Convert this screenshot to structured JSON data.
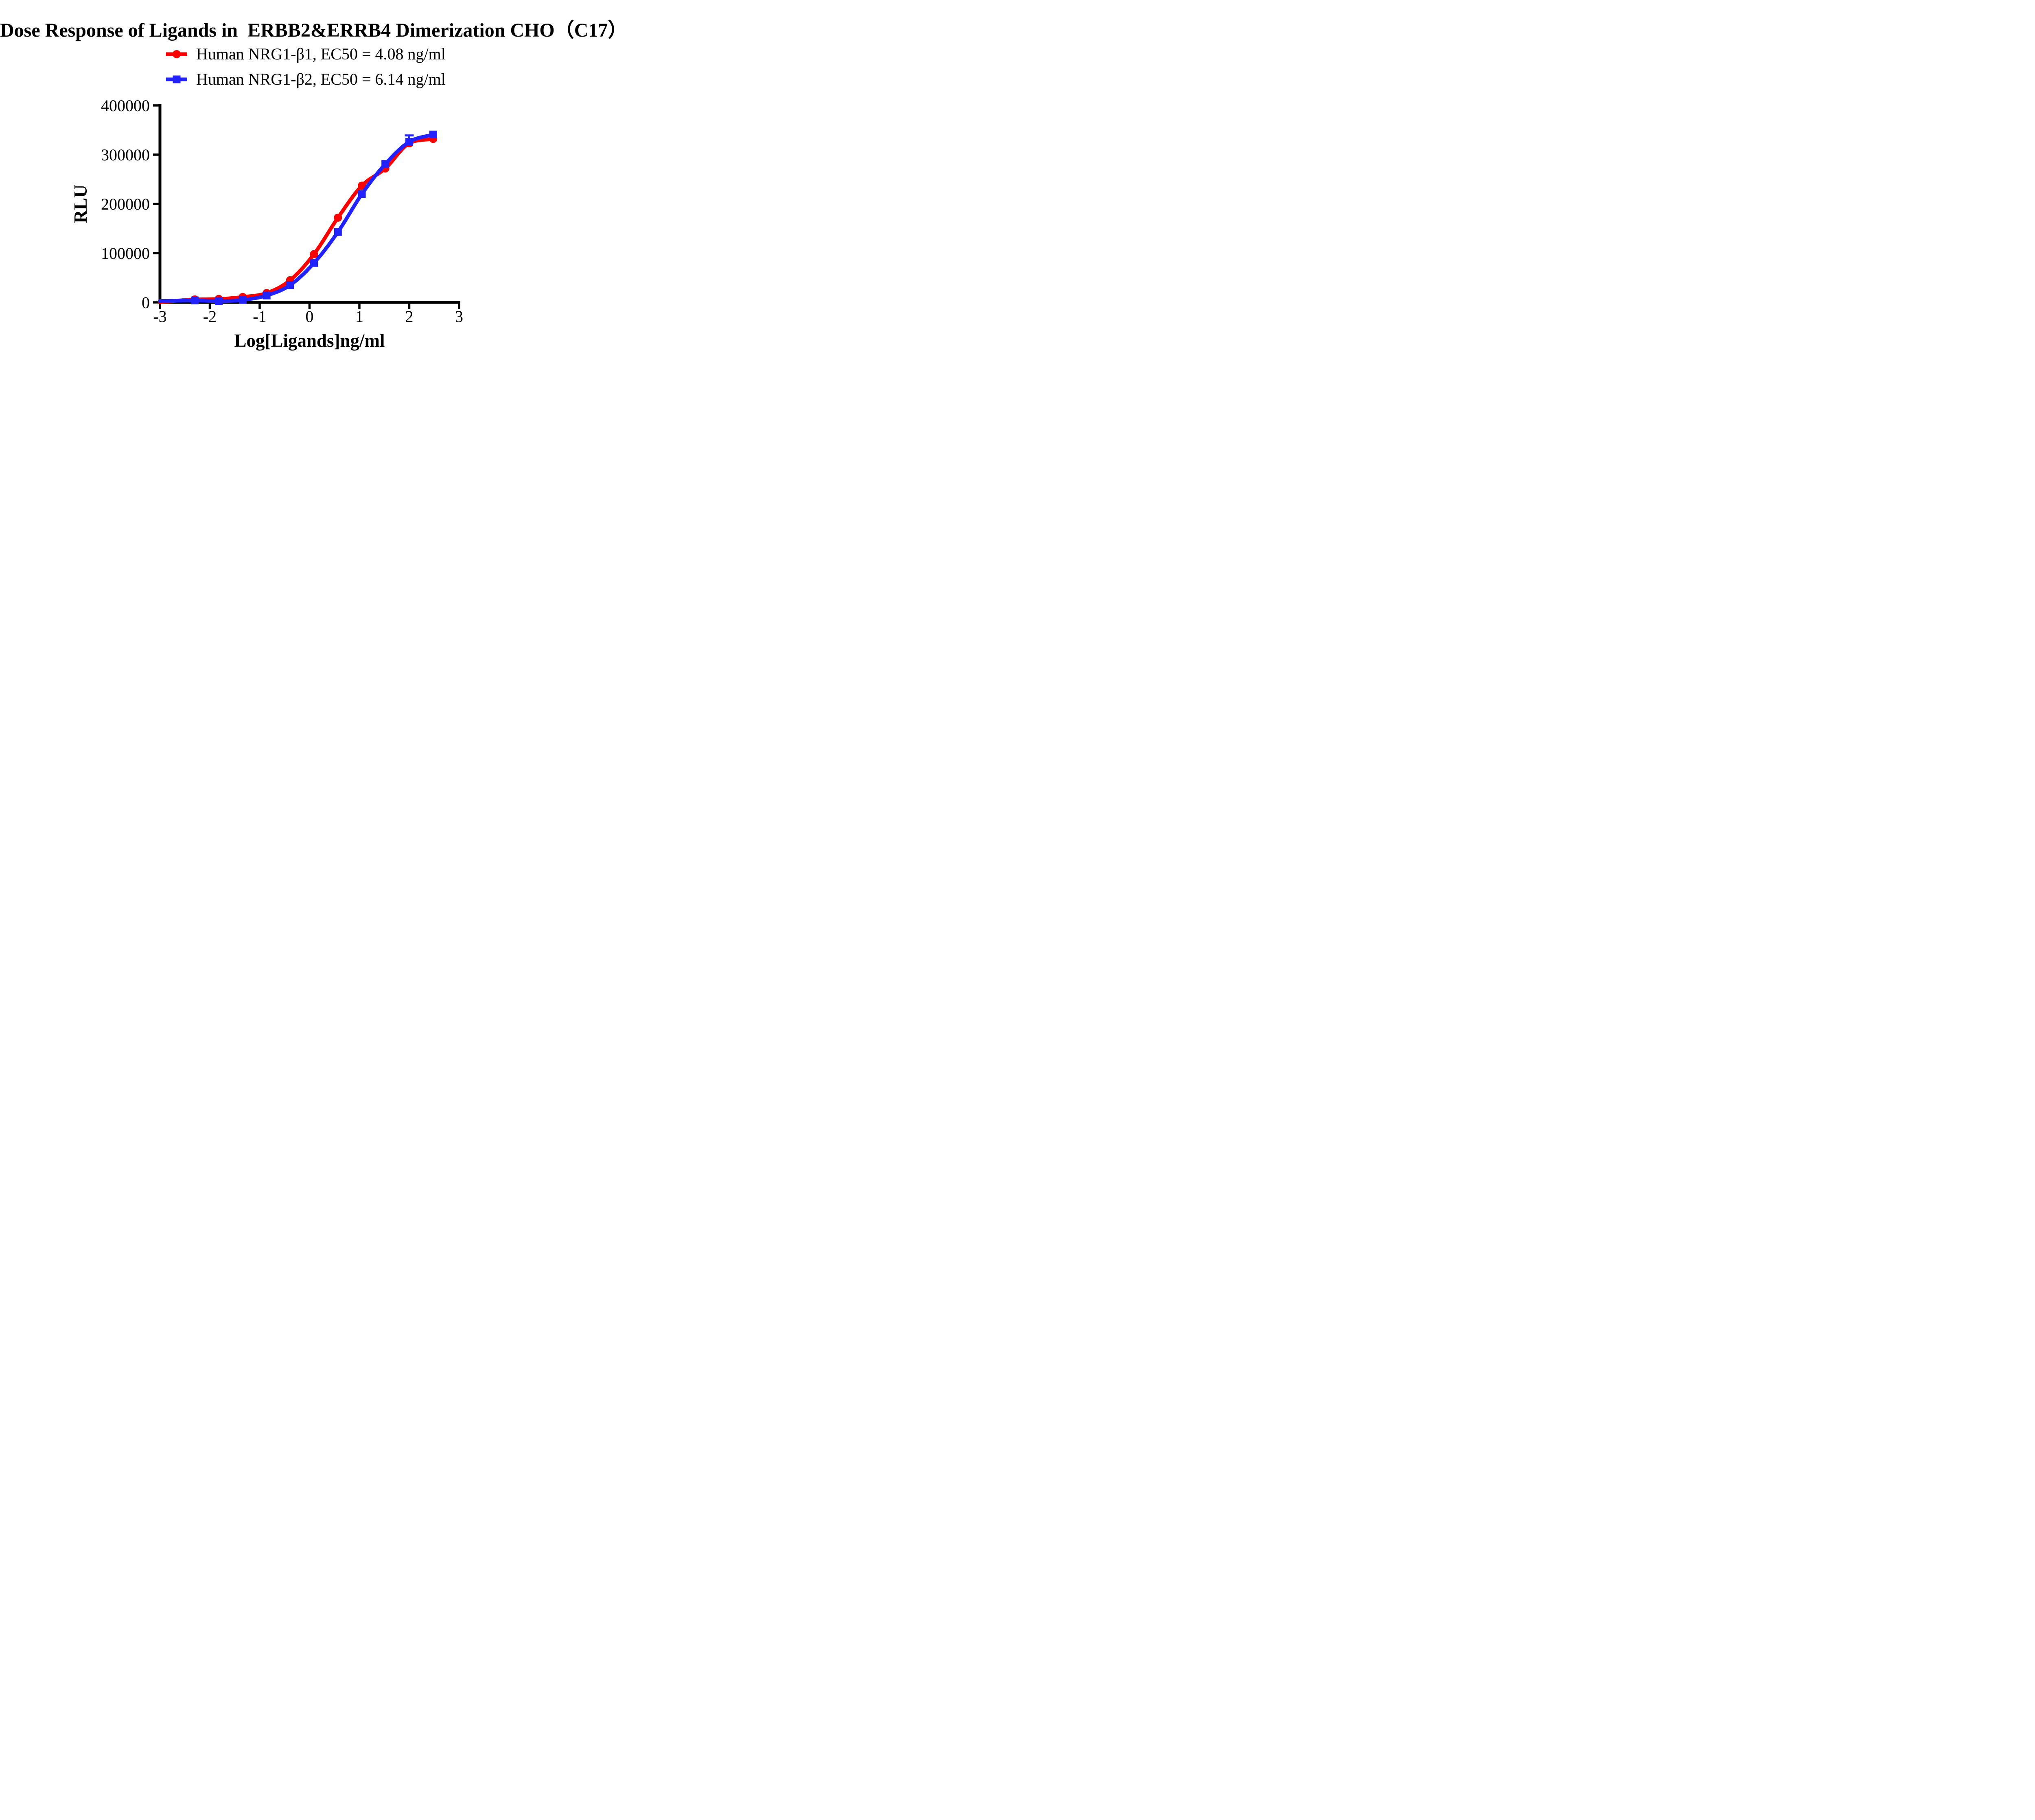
{
  "title": "Dose Response of Ligands in  ERBB2&ERRB4 Dimerization CHO（C17）",
  "colors": {
    "red_series": "#FF0000",
    "blue_series": "#2222FF",
    "axis": "#000000",
    "background": "#FFFFFF"
  },
  "legend": [
    {
      "label": "Human NRG1-β1, EC50 = 4.08 ng/ml",
      "marker": "circle",
      "color": "#FF0000"
    },
    {
      "label": "Human NRG1-β2, EC50 = 6.14 ng/ml",
      "marker": "square",
      "color": "#2222FF"
    }
  ],
  "chart_data": {
    "type": "line",
    "subtype": "dose-response-scatter-with-fit",
    "title": "Dose Response of Ligands in  ERBB2&ERRB4 Dimerization CHO（C17）",
    "xlabel": "Log[Ligands]ng/ml",
    "ylabel": "RLU",
    "xlim": [
      -3,
      3
    ],
    "ylim": [
      0,
      400000
    ],
    "xticks": [
      -3,
      -2,
      -1,
      0,
      1,
      2,
      3
    ],
    "yticks": [
      0,
      100000,
      200000,
      300000,
      400000
    ],
    "grid": false,
    "legend_position": "top-center",
    "x": [
      -2.3,
      -1.82,
      -1.34,
      -0.86,
      -0.39,
      0.09,
      0.57,
      1.05,
      1.52,
      2.0,
      2.48
    ],
    "series": [
      {
        "name": "Human NRG1-β1, EC50 = 4.08 ng/ml",
        "ec50_ng_ml": 4.08,
        "color": "#FF0000",
        "marker": "circle",
        "values": [
          6000,
          7000,
          11000,
          19000,
          45000,
          98000,
          172000,
          237000,
          272000,
          323000,
          332000
        ],
        "curve_start_y": 500,
        "error_bars": []
      },
      {
        "name": "Human NRG1-β2, EC50 = 6.14 ng/ml",
        "ec50_ng_ml": 6.14,
        "color": "#2222FF",
        "marker": "square",
        "values": [
          4000,
          2500,
          5000,
          14000,
          35000,
          80000,
          143000,
          220000,
          281000,
          326000,
          341000
        ],
        "curve_start_y": 2800,
        "error_bars": [
          {
            "x": 2.0,
            "y": 326000,
            "plus": 13000
          }
        ]
      }
    ]
  }
}
